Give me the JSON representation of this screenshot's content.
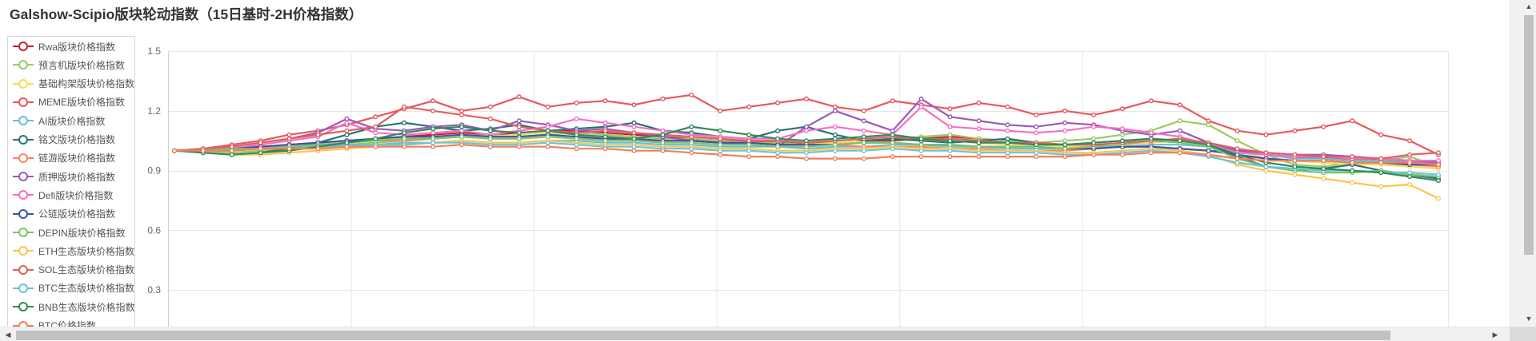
{
  "chart_data": {
    "type": "line",
    "title": "Galshow-Scipio版块轮动指数（15日基时-2H价格指数）",
    "ylim": [
      0,
      1.5
    ],
    "yticks": [
      "0.3",
      "0.6",
      "0.9",
      "1.2",
      "1.5"
    ],
    "legend_position": "left",
    "grid": true,
    "series": [
      {
        "name": "Rwa版块价格指数",
        "color": "#c1232b",
        "values": [
          1.0,
          1.0,
          1.01,
          1.02,
          1.03,
          1.04,
          1.05,
          1.06,
          1.07,
          1.08,
          1.09,
          1.08,
          1.09,
          1.1,
          1.1,
          1.09,
          1.08,
          1.07,
          1.06,
          1.05,
          1.05,
          1.04,
          1.04,
          1.04,
          1.05,
          1.05,
          1.06,
          1.07,
          1.06,
          1.05,
          1.04,
          1.03,
          1.03,
          1.02,
          1.02,
          1.01,
          1.0,
          0.99,
          0.98,
          0.97,
          0.96,
          0.96,
          0.95,
          0.95,
          0.94
        ]
      },
      {
        "name": "预言机版块价格指数",
        "color": "#9bca63",
        "values": [
          1.0,
          1.0,
          0.99,
          1.0,
          1.01,
          1.02,
          1.03,
          1.04,
          1.05,
          1.06,
          1.07,
          1.08,
          1.07,
          1.08,
          1.09,
          1.08,
          1.07,
          1.06,
          1.06,
          1.05,
          1.04,
          1.04,
          1.03,
          1.04,
          1.05,
          1.06,
          1.07,
          1.08,
          1.06,
          1.05,
          1.04,
          1.05,
          1.06,
          1.08,
          1.1,
          1.15,
          1.13,
          1.05,
          0.98,
          0.93,
          0.92,
          0.94,
          0.95,
          0.97,
          0.92
        ]
      },
      {
        "name": "基础构架版块价格指数",
        "color": "#fad860",
        "values": [
          1.0,
          1.0,
          1.01,
          1.02,
          1.03,
          1.04,
          1.05,
          1.06,
          1.06,
          1.07,
          1.08,
          1.07,
          1.08,
          1.09,
          1.08,
          1.07,
          1.06,
          1.05,
          1.05,
          1.04,
          1.04,
          1.03,
          1.03,
          1.04,
          1.05,
          1.06,
          1.05,
          1.05,
          1.04,
          1.03,
          1.03,
          1.02,
          1.02,
          1.03,
          1.04,
          1.05,
          1.04,
          1.0,
          0.96,
          0.95,
          0.94,
          0.93,
          0.93,
          0.92,
          0.91
        ]
      },
      {
        "name": "MEME版块价格指数",
        "color": "#e8575a",
        "values": [
          1.0,
          1.01,
          1.03,
          1.05,
          1.08,
          1.1,
          1.13,
          1.17,
          1.21,
          1.25,
          1.2,
          1.22,
          1.27,
          1.22,
          1.24,
          1.25,
          1.23,
          1.26,
          1.28,
          1.2,
          1.22,
          1.24,
          1.26,
          1.22,
          1.2,
          1.25,
          1.23,
          1.21,
          1.24,
          1.22,
          1.18,
          1.2,
          1.18,
          1.21,
          1.25,
          1.23,
          1.15,
          1.1,
          1.08,
          1.1,
          1.12,
          1.15,
          1.08,
          1.05,
          0.98
        ]
      },
      {
        "name": "AI版块价格指数",
        "color": "#60c0dd",
        "values": [
          1.0,
          1.0,
          1.01,
          1.01,
          1.02,
          1.02,
          1.03,
          1.03,
          1.04,
          1.04,
          1.05,
          1.04,
          1.04,
          1.05,
          1.05,
          1.04,
          1.04,
          1.03,
          1.03,
          1.02,
          1.02,
          1.02,
          1.01,
          1.02,
          1.02,
          1.03,
          1.03,
          1.02,
          1.02,
          1.01,
          1.01,
          1.01,
          1.02,
          1.02,
          1.03,
          1.03,
          1.02,
          1.0,
          0.98,
          0.96,
          0.96,
          0.95,
          0.95,
          0.94,
          0.94
        ]
      },
      {
        "name": "铭文版块价格指数",
        "color": "#27727b",
        "values": [
          1.0,
          0.99,
          0.98,
          0.99,
          1.01,
          1.04,
          1.08,
          1.12,
          1.14,
          1.12,
          1.1,
          1.11,
          1.13,
          1.1,
          1.11,
          1.12,
          1.14,
          1.1,
          1.09,
          1.07,
          1.06,
          1.1,
          1.12,
          1.08,
          1.05,
          1.06,
          1.05,
          1.04,
          1.05,
          1.06,
          1.04,
          1.03,
          1.04,
          1.05,
          1.06,
          1.05,
          1.03,
          0.97,
          0.92,
          0.9,
          0.91,
          0.93,
          0.9,
          0.88,
          0.86
        ]
      },
      {
        "name": "链游版块价格指数",
        "color": "#fe8463",
        "values": [
          1.0,
          1.0,
          1.01,
          1.02,
          1.02,
          1.03,
          1.04,
          1.05,
          1.05,
          1.06,
          1.07,
          1.06,
          1.06,
          1.07,
          1.06,
          1.06,
          1.05,
          1.05,
          1.05,
          1.04,
          1.04,
          1.03,
          1.03,
          1.03,
          1.02,
          1.02,
          1.02,
          1.01,
          1.01,
          1.0,
          1.0,
          1.0,
          1.01,
          1.02,
          1.02,
          1.01,
          1.0,
          0.98,
          0.96,
          0.95,
          0.95,
          0.94,
          0.94,
          0.93,
          0.92
        ]
      },
      {
        "name": "质押版块价格指数",
        "color": "#9b59b6",
        "values": [
          1.0,
          1.01,
          1.02,
          1.04,
          1.06,
          1.09,
          1.16,
          1.11,
          1.1,
          1.12,
          1.13,
          1.1,
          1.15,
          1.13,
          1.1,
          1.11,
          1.09,
          1.07,
          1.05,
          1.04,
          1.03,
          1.02,
          1.12,
          1.2,
          1.15,
          1.1,
          1.26,
          1.17,
          1.15,
          1.13,
          1.12,
          1.14,
          1.13,
          1.1,
          1.08,
          1.1,
          1.04,
          1.0,
          0.99,
          0.98,
          0.98,
          0.97,
          0.96,
          0.95,
          0.94
        ]
      },
      {
        "name": "Defi版块价格指数",
        "color": "#f56fc7",
        "values": [
          1.0,
          1.0,
          1.01,
          1.03,
          1.05,
          1.07,
          1.14,
          1.09,
          1.08,
          1.09,
          1.1,
          1.08,
          1.1,
          1.12,
          1.16,
          1.14,
          1.12,
          1.1,
          1.08,
          1.07,
          1.06,
          1.06,
          1.1,
          1.12,
          1.1,
          1.08,
          1.22,
          1.12,
          1.11,
          1.1,
          1.09,
          1.1,
          1.12,
          1.11,
          1.09,
          1.07,
          1.03,
          0.99,
          0.98,
          0.97,
          0.97,
          0.96,
          0.96,
          0.95,
          0.95
        ]
      },
      {
        "name": "公链版块价格指数",
        "color": "#3f51a8",
        "values": [
          1.0,
          1.0,
          1.01,
          1.02,
          1.03,
          1.04,
          1.05,
          1.06,
          1.07,
          1.07,
          1.08,
          1.07,
          1.07,
          1.08,
          1.07,
          1.06,
          1.06,
          1.05,
          1.05,
          1.04,
          1.04,
          1.03,
          1.03,
          1.03,
          1.04,
          1.04,
          1.03,
          1.03,
          1.02,
          1.02,
          1.02,
          1.01,
          1.01,
          1.02,
          1.02,
          1.01,
          1.0,
          0.98,
          0.96,
          0.95,
          0.95,
          0.94,
          0.94,
          0.93,
          0.93
        ]
      },
      {
        "name": "DEPIN版块价格指数",
        "color": "#7bc46b",
        "values": [
          1.0,
          1.0,
          1.01,
          1.01,
          1.02,
          1.03,
          1.04,
          1.05,
          1.06,
          1.06,
          1.07,
          1.06,
          1.06,
          1.07,
          1.06,
          1.05,
          1.05,
          1.04,
          1.04,
          1.03,
          1.03,
          1.02,
          1.02,
          1.03,
          1.04,
          1.04,
          1.03,
          1.03,
          1.02,
          1.02,
          1.02,
          1.01,
          1.02,
          1.03,
          1.05,
          1.04,
          1.02,
          0.96,
          0.92,
          0.9,
          0.89,
          0.89,
          0.9,
          0.88,
          0.87
        ]
      },
      {
        "name": "ETH生态版块价格指数",
        "color": "#f9c74f",
        "values": [
          1.0,
          0.99,
          0.98,
          0.98,
          0.99,
          1.0,
          1.01,
          1.02,
          1.03,
          1.04,
          1.05,
          1.04,
          1.04,
          1.05,
          1.04,
          1.03,
          1.03,
          1.02,
          1.02,
          1.01,
          1.01,
          1.0,
          1.0,
          1.01,
          1.01,
          1.02,
          1.01,
          1.01,
          1.0,
          1.0,
          1.0,
          0.99,
          0.99,
          1.0,
          1.01,
          1.0,
          0.98,
          0.93,
          0.9,
          0.88,
          0.86,
          0.84,
          0.82,
          0.83,
          0.76
        ]
      },
      {
        "name": "SOL生态版块价格指数",
        "color": "#e15f5f",
        "values": [
          1.0,
          1.01,
          1.02,
          1.04,
          1.06,
          1.08,
          1.1,
          1.12,
          1.22,
          1.2,
          1.18,
          1.16,
          1.12,
          1.1,
          1.09,
          1.1,
          1.09,
          1.08,
          1.07,
          1.06,
          1.05,
          1.05,
          1.04,
          1.05,
          1.06,
          1.07,
          1.06,
          1.06,
          1.05,
          1.04,
          1.04,
          1.03,
          1.03,
          1.04,
          1.05,
          1.06,
          1.04,
          1.01,
          0.99,
          0.98,
          0.97,
          0.97,
          0.96,
          0.98,
          0.99
        ]
      },
      {
        "name": "BTC生态版块价格指数",
        "color": "#6cc3d5",
        "values": [
          1.0,
          1.0,
          1.0,
          1.01,
          1.01,
          1.02,
          1.02,
          1.03,
          1.03,
          1.04,
          1.04,
          1.03,
          1.03,
          1.04,
          1.03,
          1.02,
          1.02,
          1.01,
          1.01,
          1.0,
          1.0,
          0.99,
          0.99,
          1.0,
          1.0,
          1.01,
          1.0,
          1.0,
          0.99,
          0.99,
          0.99,
          0.98,
          0.98,
          0.99,
          1.0,
          0.99,
          0.97,
          0.94,
          0.92,
          0.91,
          0.9,
          0.9,
          0.89,
          0.89,
          0.88
        ]
      },
      {
        "name": "BNB生态版块价格指数",
        "color": "#2e8b57",
        "values": [
          1.0,
          0.99,
          0.98,
          0.99,
          1.0,
          1.02,
          1.04,
          1.06,
          1.09,
          1.11,
          1.12,
          1.1,
          1.09,
          1.1,
          1.08,
          1.07,
          1.06,
          1.08,
          1.12,
          1.1,
          1.08,
          1.06,
          1.05,
          1.06,
          1.07,
          1.08,
          1.06,
          1.05,
          1.04,
          1.04,
          1.03,
          1.03,
          1.04,
          1.05,
          1.06,
          1.05,
          1.03,
          0.98,
          0.94,
          0.92,
          0.91,
          0.9,
          0.89,
          0.87,
          0.85
        ]
      },
      {
        "name": "BTC价格指数",
        "color": "#f0805a",
        "values": [
          1.0,
          1.0,
          1.0,
          1.01,
          1.01,
          1.01,
          1.02,
          1.02,
          1.02,
          1.02,
          1.03,
          1.02,
          1.02,
          1.02,
          1.01,
          1.01,
          1.0,
          1.0,
          0.99,
          0.98,
          0.97,
          0.97,
          0.96,
          0.96,
          0.96,
          0.97,
          0.97,
          0.97,
          0.97,
          0.97,
          0.97,
          0.97,
          0.98,
          0.98,
          0.99,
          0.99,
          0.98,
          0.96,
          0.95,
          0.95,
          0.95,
          0.94,
          0.94,
          0.94,
          0.93
        ]
      }
    ]
  },
  "ui": {
    "scroll_up_glyph": "▲",
    "scroll_down_glyph": "▼",
    "scroll_left_glyph": "◀",
    "scroll_right_glyph": "▶"
  }
}
